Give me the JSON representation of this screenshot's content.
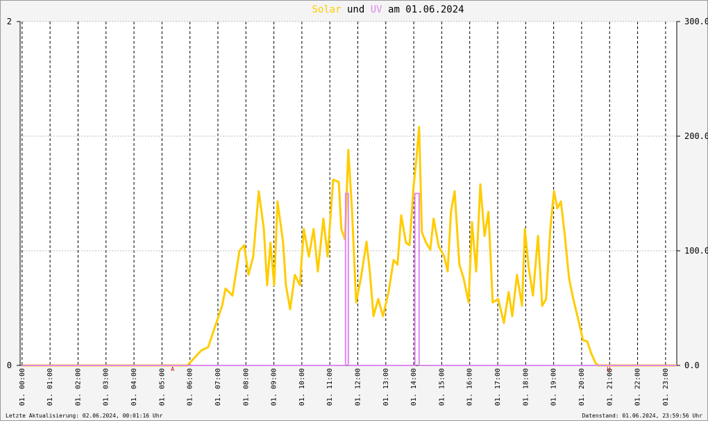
{
  "chart_data": {
    "type": "line",
    "title_connector": "und",
    "title_date": "am 01.06.2024",
    "footer_left": "Letzte Aktualisierung: 02.06.2024, 00:01:16 Uhr",
    "footer_right": "Datenstand: 01.06.2024, 23:59:56 Uhr",
    "xlim": [
      -0.07,
      23.4
    ],
    "xticks": [
      {
        "value": 0,
        "label": "01. 00:00"
      },
      {
        "value": 1,
        "label": "01. 01:00"
      },
      {
        "value": 2,
        "label": "01. 02:00"
      },
      {
        "value": 3,
        "label": "01. 03:00"
      },
      {
        "value": 4,
        "label": "01. 04:00"
      },
      {
        "value": 5,
        "label": "01. 05:00"
      },
      {
        "value": 6,
        "label": "01. 06:00"
      },
      {
        "value": 7,
        "label": "01. 07:00"
      },
      {
        "value": 8,
        "label": "01. 08:00"
      },
      {
        "value": 9,
        "label": "01. 09:00"
      },
      {
        "value": 10,
        "label": "01. 10:00"
      },
      {
        "value": 11,
        "label": "01. 11:00"
      },
      {
        "value": 12,
        "label": "01. 12:00"
      },
      {
        "value": 13,
        "label": "01. 13:00"
      },
      {
        "value": 14,
        "label": "01. 14:00"
      },
      {
        "value": 15,
        "label": "01. 15:00"
      },
      {
        "value": 16,
        "label": "01. 16:00"
      },
      {
        "value": 17,
        "label": "01. 17:00"
      },
      {
        "value": 18,
        "label": "01. 18:00"
      },
      {
        "value": 19,
        "label": "01. 19:00"
      },
      {
        "value": 20,
        "label": "01. 20:00"
      },
      {
        "value": 21,
        "label": "01. 21:00"
      },
      {
        "value": 22,
        "label": "01. 22:00"
      },
      {
        "value": 23,
        "label": "01. 23:00"
      }
    ],
    "ylim": [
      0,
      2
    ],
    "yticks": [
      0,
      2
    ],
    "y2lim": [
      0,
      300
    ],
    "y2ticks": [
      {
        "value": 0,
        "label": "0.0"
      },
      {
        "value": 100,
        "label": "100.0"
      },
      {
        "value": 200,
        "label": "200.0"
      },
      {
        "value": 300,
        "label": "300.0"
      }
    ],
    "grid": true,
    "annotations": [
      {
        "text": "A",
        "x": 5.38
      },
      {
        "text": "U",
        "x": 20.97
      }
    ],
    "series": [
      {
        "name": "Solar",
        "color": "#ffcc00",
        "axis": "y2",
        "x": [
          0,
          5.91,
          6.4,
          6.65,
          6.9,
          7.15,
          7.27,
          7.52,
          7.77,
          7.94,
          8.09,
          8.26,
          8.46,
          8.64,
          8.76,
          8.88,
          9.01,
          9.13,
          9.33,
          9.43,
          9.58,
          9.75,
          9.93,
          10.07,
          10.25,
          10.42,
          10.57,
          10.77,
          10.92,
          11.12,
          11.32,
          11.41,
          11.54,
          11.66,
          11.79,
          11.94,
          12.11,
          12.31,
          12.43,
          12.56,
          12.73,
          12.9,
          13.1,
          13.28,
          13.42,
          13.55,
          13.72,
          13.85,
          13.99,
          14.09,
          14.19,
          14.29,
          14.44,
          14.59,
          14.71,
          14.89,
          15.09,
          15.21,
          15.33,
          15.46,
          15.63,
          15.78,
          15.96,
          16.08,
          16.23,
          16.38,
          16.53,
          16.67,
          16.82,
          17.02,
          17.22,
          17.39,
          17.52,
          17.69,
          17.87,
          17.97,
          18.11,
          18.26,
          18.44,
          18.59,
          18.73,
          18.88,
          19.01,
          19.13,
          19.26,
          19.4,
          19.55,
          19.7,
          19.88,
          20.05,
          20.2,
          20.35,
          20.5,
          20.6,
          23.4
        ],
        "values": [
          0,
          0,
          13,
          16,
          34,
          52,
          67,
          61,
          100,
          105,
          79,
          95,
          152,
          119,
          70,
          107,
          70,
          143,
          107,
          70,
          49,
          79,
          70,
          119,
          95,
          119,
          82,
          128,
          95,
          162,
          160,
          119,
          110,
          188,
          137,
          55,
          76,
          108,
          82,
          43,
          58,
          43,
          64,
          92,
          88,
          131,
          107,
          105,
          155,
          179,
          208,
          116,
          107,
          101,
          128,
          104,
          95,
          82,
          134,
          152,
          88,
          76,
          55,
          125,
          82,
          158,
          113,
          134,
          55,
          58,
          37,
          64,
          43,
          79,
          52,
          119,
          85,
          61,
          113,
          52,
          58,
          119,
          152,
          137,
          143,
          113,
          76,
          58,
          40,
          22,
          21,
          10,
          2,
          0,
          0
        ]
      },
      {
        "name": "UV",
        "color": "#dd88ee",
        "axis": "y",
        "x": [
          0,
          11.56,
          11.56,
          11.66,
          11.66,
          14.04,
          14.04,
          14.19,
          14.19,
          23.4
        ],
        "values": [
          0,
          0,
          1,
          1,
          0,
          0,
          1,
          1,
          0,
          0
        ]
      }
    ]
  }
}
